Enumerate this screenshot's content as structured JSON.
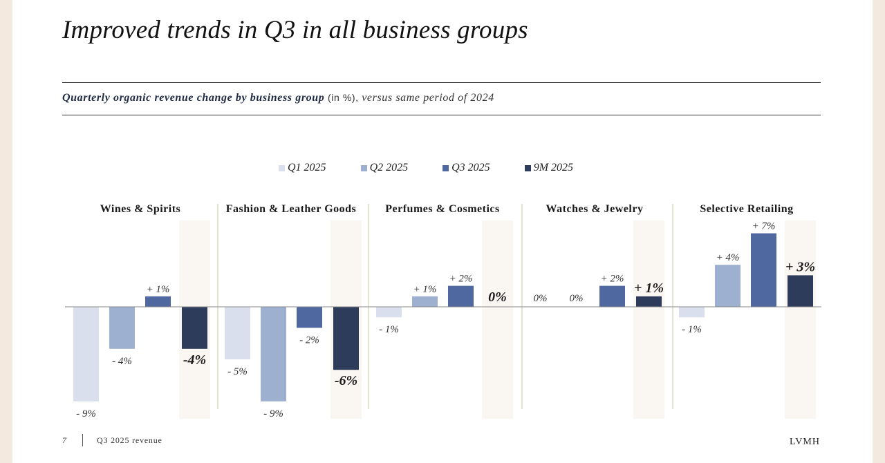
{
  "title": "Improved trends in Q3 in all business groups",
  "subtitle": {
    "main": "Quarterly organic revenue change by business group",
    "unit": "(in %),",
    "comparison": "versus same period of 2024"
  },
  "colors": {
    "Q1 2025": "#d9dfec",
    "Q2 2025": "#9eb0cf",
    "Q3 2025": "#5068a0",
    "9M 2025": "#2c3c5a",
    "highlight_band": "#faf6f1",
    "group_divider": "#c4c9a6",
    "axis": "#8a8a8a"
  },
  "chart_data": {
    "type": "bar",
    "title": "Quarterly organic revenue change by business group (in %), versus same period of 2024",
    "categories": [
      "Wines & Spirits",
      "Fashion & Leather Goods",
      "Perfumes & Cosmetics",
      "Watches & Jewelry",
      "Selective Retailing"
    ],
    "series": [
      {
        "name": "Q1 2025",
        "values": [
          -9,
          -5,
          -1,
          0,
          -1
        ],
        "labels": [
          "- 9%",
          "- 5%",
          "- 1%",
          "0%",
          "- 1%"
        ]
      },
      {
        "name": "Q2 2025",
        "values": [
          -4,
          -9,
          1,
          0,
          4
        ],
        "labels": [
          "- 4%",
          "- 9%",
          "+ 1%",
          "0%",
          "+ 4%"
        ]
      },
      {
        "name": "Q3 2025",
        "values": [
          1,
          -2,
          2,
          2,
          7
        ],
        "labels": [
          "+ 1%",
          "- 2%",
          "+ 2%",
          "+ 2%",
          "+ 7%"
        ]
      },
      {
        "name": "9M 2025",
        "values": [
          -4,
          -6,
          0,
          1,
          3
        ],
        "labels": [
          "-4%",
          "-6%",
          "0%",
          "+ 1%",
          "+ 3%"
        ]
      }
    ],
    "highlighted_series": "9M 2025",
    "ylabel": "%",
    "ylim": [
      -10,
      8
    ],
    "legend": "top-center",
    "grid": false
  },
  "footer": {
    "page": "7",
    "label": "Q3 2025 revenue",
    "brand": "LVMH"
  }
}
